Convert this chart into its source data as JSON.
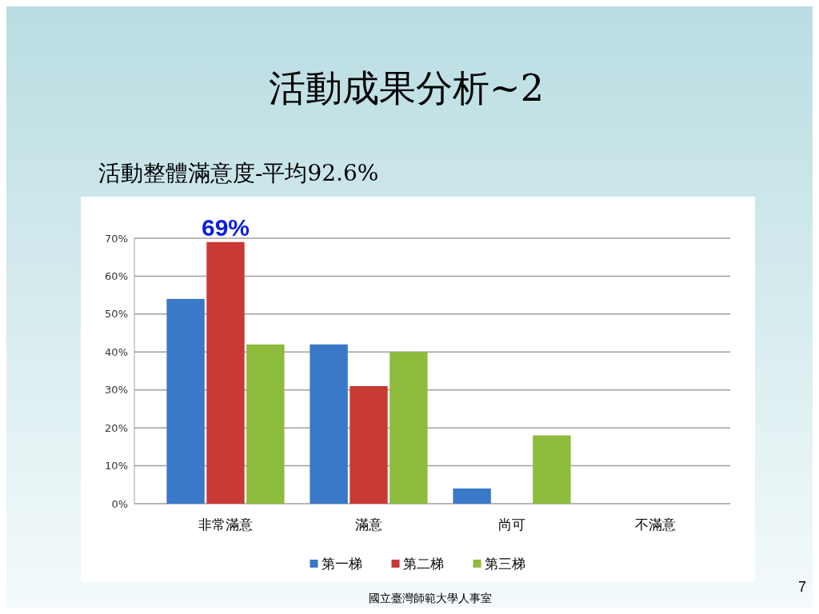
{
  "chart_data": {
    "type": "bar",
    "title": "活動成果分析~2",
    "subtitle": "活動整體滿意度-平均92.6%",
    "categories": [
      "非常滿意",
      "滿意",
      "尚可",
      "不滿意"
    ],
    "series": [
      {
        "name": "第一梯",
        "color": "#3a78c8",
        "values": [
          54,
          42,
          4,
          0
        ]
      },
      {
        "name": "第二梯",
        "color": "#c83a36",
        "values": [
          69,
          31,
          0,
          0
        ],
        "value_labels": [
          "69%",
          null,
          null,
          null
        ]
      },
      {
        "name": "第三梯",
        "color": "#8dbb3c",
        "values": [
          42,
          40,
          18,
          0
        ]
      }
    ],
    "ylim": [
      0,
      70
    ],
    "yticks": [
      {
        "value": 0,
        "label": "0%"
      },
      {
        "value": 10,
        "label": "10%"
      },
      {
        "value": 20,
        "label": "20%"
      },
      {
        "value": 30,
        "label": "30%"
      },
      {
        "value": 40,
        "label": "40%"
      },
      {
        "value": 50,
        "label": "50%"
      },
      {
        "value": 60,
        "label": "60%"
      },
      {
        "value": 70,
        "label": "70%"
      }
    ],
    "grid": "y",
    "legend": "bottom",
    "annotations": [
      "國立臺灣師範大學人事室",
      "7"
    ]
  }
}
